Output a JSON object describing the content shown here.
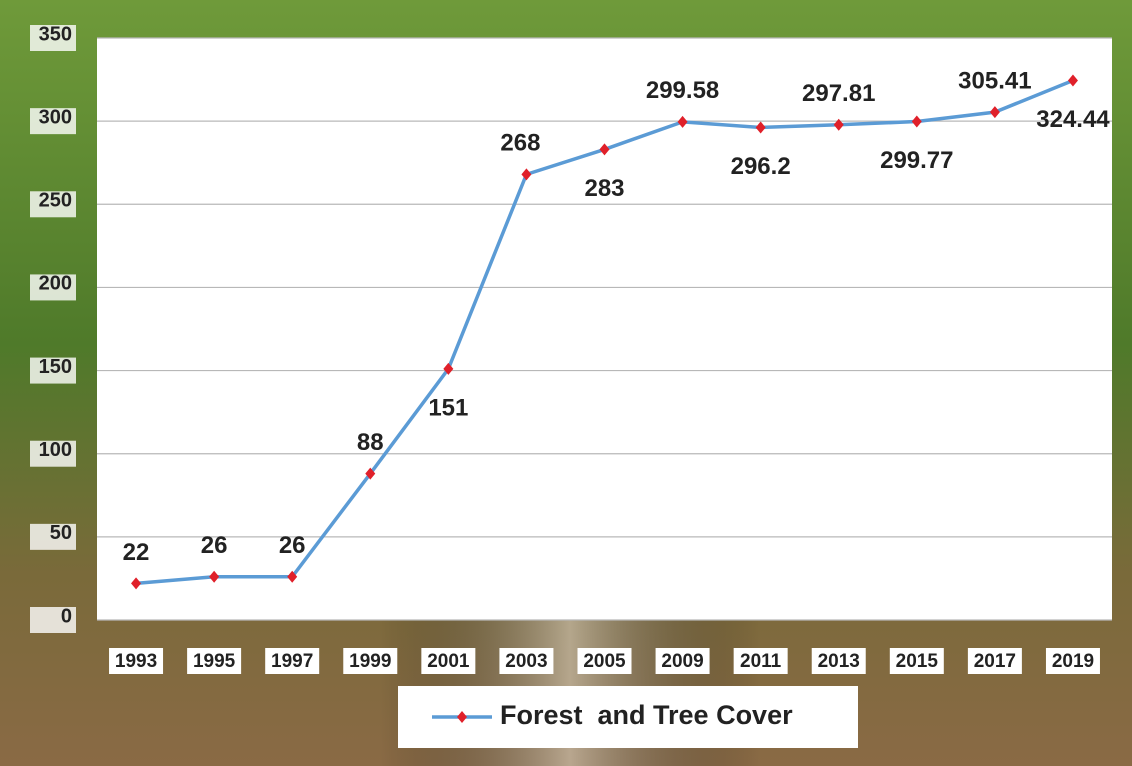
{
  "chart_data": {
    "type": "line",
    "categories": [
      "1993",
      "1995",
      "1997",
      "1999",
      "2001",
      "2003",
      "2005",
      "2009",
      "2011",
      "2013",
      "2015",
      "2017",
      "2019"
    ],
    "series": [
      {
        "name": "Forest  and Tree Cover",
        "color": "#5b9bd5",
        "marker_color": "#e0202a",
        "values": [
          22,
          26,
          26,
          88,
          151,
          268,
          283,
          299.58,
          296.2,
          297.81,
          299.77,
          305.41,
          324.44
        ]
      }
    ],
    "ylim": [
      0,
      350
    ],
    "yticks": [
      0,
      50,
      100,
      150,
      200,
      250,
      300,
      350
    ],
    "grid": true,
    "legend": "bottom"
  }
}
